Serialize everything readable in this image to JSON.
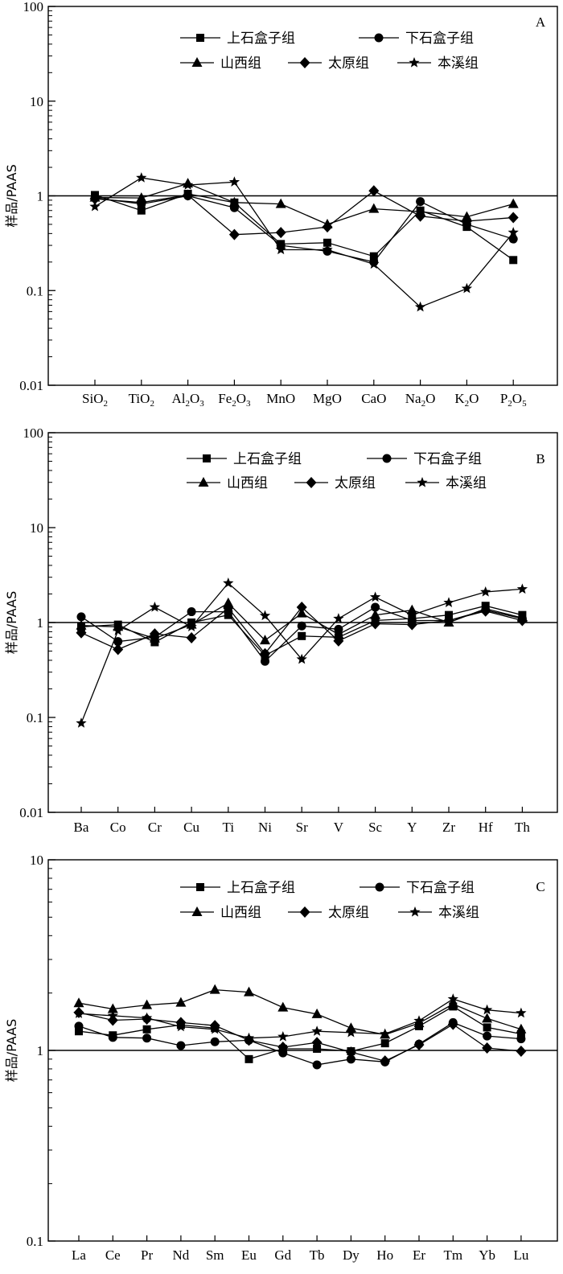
{
  "chart_data": [
    {
      "type": "line",
      "panel_label": "A",
      "ylabel": "样品/PAAS",
      "yscale": "log",
      "ylim": [
        0.01,
        100
      ],
      "yticks": [
        "0.01",
        "0.1",
        "1",
        "10",
        "100"
      ],
      "reference_line": 1,
      "categories": [
        {
          "base": "SiO",
          "sub": "2",
          "tail": ""
        },
        {
          "base": "TiO",
          "sub": "2",
          "tail": ""
        },
        {
          "base": "Al",
          "sub": "2",
          "tail": "O",
          "sub2": "3"
        },
        {
          "base": "Fe",
          "sub": "2",
          "tail": "O",
          "sub2": "3"
        },
        {
          "base": "MnO",
          "sub": "",
          "tail": ""
        },
        {
          "base": "MgO",
          "sub": "",
          "tail": ""
        },
        {
          "base": "CaO",
          "sub": "",
          "tail": ""
        },
        {
          "base": "Na",
          "sub": "2",
          "tail": "O"
        },
        {
          "base": "K",
          "sub": "2",
          "tail": "O"
        },
        {
          "base": "P",
          "sub": "2",
          "tail": "O",
          "sub2": "5"
        }
      ],
      "series": [
        {
          "name": "上石盒子组",
          "marker": "square",
          "values": [
            1.02,
            0.7,
            1.05,
            0.85,
            0.31,
            0.32,
            0.23,
            0.7,
            0.47,
            0.21
          ]
        },
        {
          "name": "下石盒子组",
          "marker": "circle",
          "values": [
            0.95,
            0.82,
            1.0,
            0.75,
            0.3,
            0.26,
            0.2,
            0.87,
            0.5,
            0.35
          ]
        },
        {
          "name": "山西组",
          "marker": "triangle",
          "values": [
            0.96,
            0.95,
            1.35,
            0.85,
            0.82,
            0.5,
            0.73,
            0.68,
            0.6,
            0.82
          ]
        },
        {
          "name": "太原组",
          "marker": "diamond",
          "values": [
            0.93,
            0.85,
            1.02,
            0.39,
            0.41,
            0.47,
            1.13,
            0.61,
            0.54,
            0.59
          ]
        },
        {
          "name": "本溪组",
          "marker": "star",
          "values": [
            0.77,
            1.55,
            1.3,
            1.4,
            0.27,
            0.27,
            0.19,
            0.067,
            0.105,
            0.41
          ]
        }
      ]
    },
    {
      "type": "line",
      "panel_label": "B",
      "ylabel": "样品/PAAS",
      "yscale": "log",
      "ylim": [
        0.01,
        100
      ],
      "yticks": [
        "0.01",
        "0.1",
        "1",
        "10",
        "100"
      ],
      "reference_line": 1,
      "categories": [
        {
          "base": "Ba"
        },
        {
          "base": "Co"
        },
        {
          "base": "Cr"
        },
        {
          "base": "Cu"
        },
        {
          "base": "Ti"
        },
        {
          "base": "Ni"
        },
        {
          "base": "Sr"
        },
        {
          "base": "V"
        },
        {
          "base": "Sc"
        },
        {
          "base": "Y"
        },
        {
          "base": "Zr"
        },
        {
          "base": "Hf"
        },
        {
          "base": "Th"
        }
      ],
      "series": [
        {
          "name": "上石盒子组",
          "marker": "square",
          "values": [
            0.9,
            0.95,
            0.62,
            1.0,
            1.2,
            0.45,
            0.72,
            0.7,
            1.05,
            1.1,
            1.2,
            1.5,
            1.2
          ]
        },
        {
          "name": "下石盒子组",
          "marker": "circle",
          "values": [
            1.15,
            0.63,
            0.7,
            1.3,
            1.3,
            0.39,
            0.92,
            0.85,
            1.45,
            1.05,
            1.05,
            1.35,
            1.1
          ]
        },
        {
          "name": "山西组",
          "marker": "triangle",
          "values": [
            0.93,
            0.9,
            0.68,
            0.95,
            1.6,
            0.65,
            1.25,
            0.75,
            1.2,
            1.35,
            1.0,
            1.4,
            1.12
          ]
        },
        {
          "name": "太原组",
          "marker": "diamond",
          "values": [
            0.78,
            0.52,
            0.76,
            0.69,
            1.42,
            0.47,
            1.45,
            0.64,
            0.97,
            0.95,
            1.05,
            1.32,
            1.05
          ]
        },
        {
          "name": "本溪组",
          "marker": "star",
          "values": [
            0.087,
            0.82,
            1.45,
            0.9,
            2.6,
            1.18,
            0.41,
            1.1,
            1.85,
            1.2,
            1.62,
            2.1,
            2.25
          ]
        }
      ]
    },
    {
      "type": "line",
      "panel_label": "C",
      "ylabel": "样品/PAAS",
      "yscale": "log",
      "ylim": [
        0.1,
        10
      ],
      "yticks": [
        "0.1",
        "1",
        "10"
      ],
      "reference_line": 1,
      "categories": [
        {
          "base": "La"
        },
        {
          "base": "Ce"
        },
        {
          "base": "Pr"
        },
        {
          "base": "Nd"
        },
        {
          "base": "Sm"
        },
        {
          "base": "Eu"
        },
        {
          "base": "Gd"
        },
        {
          "base": "Tb"
        },
        {
          "base": "Dy"
        },
        {
          "base": "Ho"
        },
        {
          "base": "Er"
        },
        {
          "base": "Tm"
        },
        {
          "base": "Yb"
        },
        {
          "base": "Lu"
        }
      ],
      "series": [
        {
          "name": "上石盒子组",
          "marker": "square",
          "values": [
            1.26,
            1.2,
            1.29,
            1.36,
            1.31,
            0.9,
            1.02,
            1.02,
            0.99,
            1.09,
            1.34,
            1.7,
            1.32,
            1.22
          ]
        },
        {
          "name": "下石盒子组",
          "marker": "circle",
          "values": [
            1.34,
            1.17,
            1.16,
            1.06,
            1.11,
            1.13,
            0.97,
            0.84,
            0.9,
            0.87,
            1.08,
            1.4,
            1.19,
            1.15
          ]
        },
        {
          "name": "山西组",
          "marker": "triangle",
          "values": [
            1.77,
            1.65,
            1.73,
            1.78,
            2.08,
            2.02,
            1.68,
            1.55,
            1.31,
            1.21,
            1.39,
            1.75,
            1.47,
            1.29
          ]
        },
        {
          "name": "太原组",
          "marker": "diamond",
          "values": [
            1.58,
            1.44,
            1.46,
            1.4,
            1.35,
            1.13,
            1.04,
            1.1,
            0.98,
            0.88,
            1.07,
            1.37,
            1.03,
            0.99
          ]
        },
        {
          "name": "本溪组",
          "marker": "star",
          "values": [
            1.56,
            1.52,
            1.48,
            1.33,
            1.29,
            1.16,
            1.18,
            1.26,
            1.24,
            1.22,
            1.43,
            1.86,
            1.63,
            1.57
          ]
        }
      ]
    }
  ]
}
